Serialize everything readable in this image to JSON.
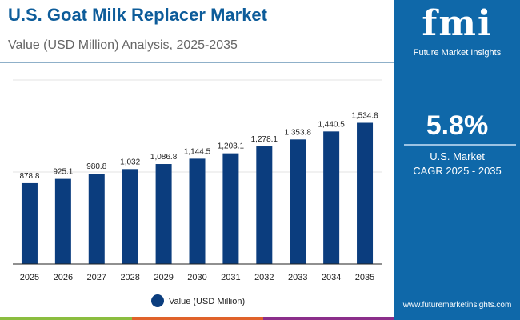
{
  "header": {
    "title": "U.S. Goat Milk Replacer Market",
    "subtitle": "Value (USD Million) Analysis, 2025-2035"
  },
  "panel": {
    "logo": "fmi",
    "logo_text": "Future Market Insights",
    "cagr": "5.8%",
    "cagr_label_1": "U.S. Market",
    "cagr_label_2": "CAGR 2025 - 2035",
    "website": "www.futuremarketinsights.com"
  },
  "colors": {
    "bar": "#0b3d7e",
    "brand": "#0f68a9",
    "strip": [
      "#8bbd3f",
      "#e0622a",
      "#8b2f8a"
    ]
  },
  "chart_data": {
    "type": "bar",
    "categories": [
      "2025",
      "2026",
      "2027",
      "2028",
      "2029",
      "2030",
      "2031",
      "2032",
      "2033",
      "2034",
      "2035"
    ],
    "series": [
      {
        "name": "Value (USD Million)",
        "values": [
          878.8,
          925.1,
          980.8,
          1032,
          1086.8,
          1144.5,
          1203.1,
          1278.1,
          1353.8,
          1440.5,
          1534.8
        ],
        "labels": [
          "878.8",
          "925.1",
          "980.8",
          "1,032",
          "1,086.8",
          "1,144.5",
          "1,203.1",
          "1,278.1",
          "1,353.8",
          "1,440.5",
          "1,534.8"
        ]
      }
    ],
    "ylim": [
      0,
      2000
    ],
    "grid": true,
    "legend": "bottom",
    "xlabel": "",
    "ylabel": ""
  }
}
